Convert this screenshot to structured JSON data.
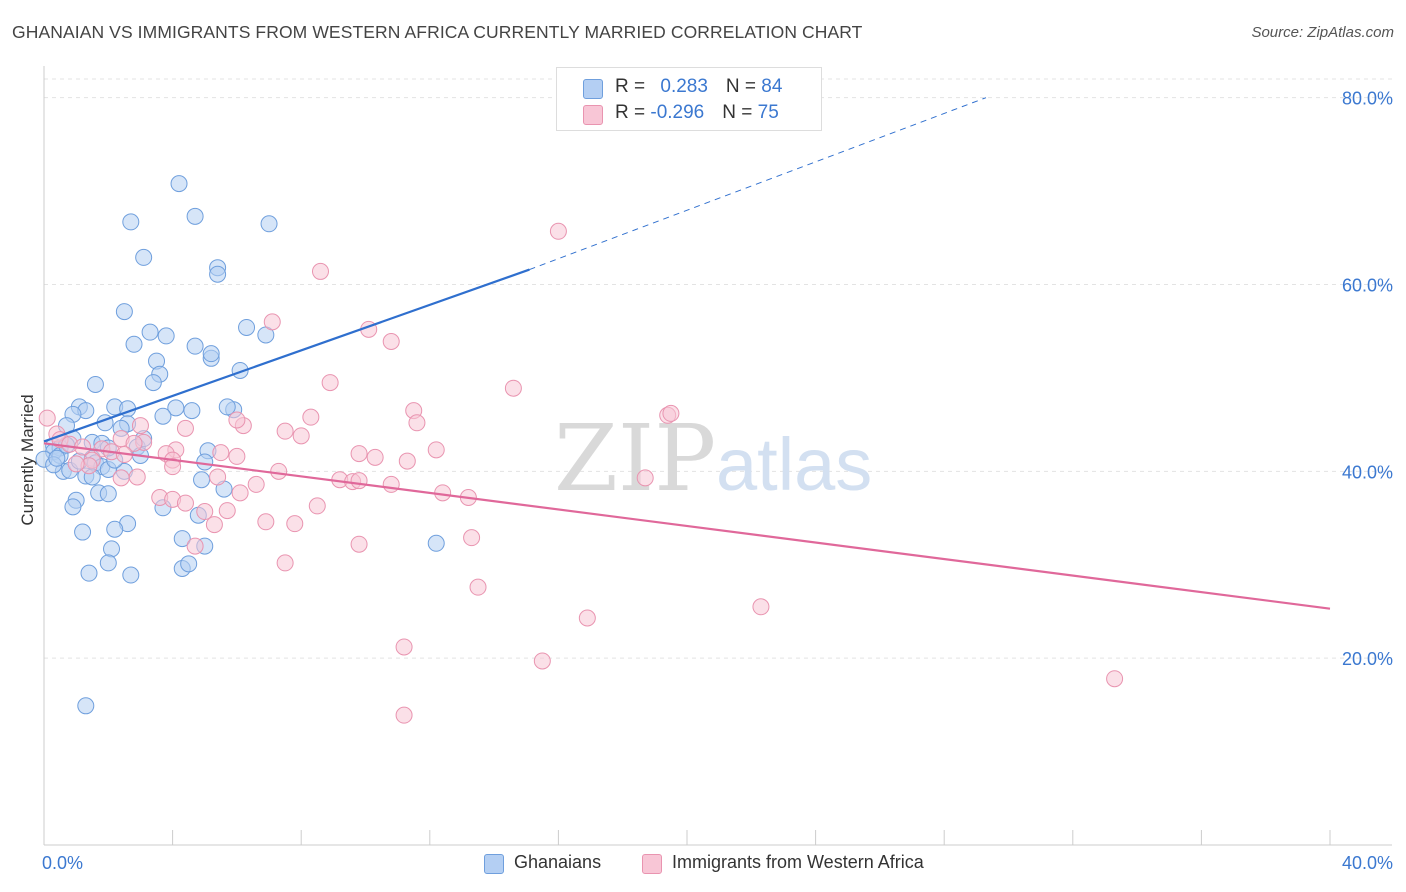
{
  "title": "GHANAIAN VS IMMIGRANTS FROM WESTERN AFRICA CURRENTLY MARRIED CORRELATION CHART",
  "source": "Source: ZipAtlas.com",
  "watermark": {
    "zip": "ZIP",
    "atlas": "atlas"
  },
  "legend": {
    "rows": [
      {
        "r_label": "R = ",
        "r_value": "0.283",
        "n_label": "N = ",
        "n_value": "84"
      },
      {
        "r_label": "R = ",
        "r_value": "-0.296",
        "n_label": "N = ",
        "n_value": "75"
      }
    ]
  },
  "bottom_legend": [
    {
      "label": "Ghanaians"
    },
    {
      "label": "Immigrants from Western Africa"
    }
  ],
  "chart_data": {
    "type": "scatter",
    "title": "GHANAIAN VS IMMIGRANTS FROM WESTERN AFRICA CURRENTLY MARRIED CORRELATION CHART",
    "xlabel": "",
    "ylabel": "Currently Married",
    "xlim": [
      0,
      40
    ],
    "ylim": [
      0,
      82
    ],
    "x_tick_labels": [
      "0.0%",
      "40.0%"
    ],
    "y_ticks": [
      20,
      40,
      60,
      80
    ],
    "y_tick_labels": [
      "20.0%",
      "40.0%",
      "60.0%",
      "80.0%"
    ],
    "grid": true,
    "legend_position": "top-center",
    "colors": {
      "ghanaians_fill": "#b4cff3",
      "ghanaians_stroke": "#6f9fdd",
      "ghanaians_line": "#2f6fce",
      "western_africa_fill": "#f8c6d6",
      "western_africa_stroke": "#e994b0",
      "western_africa_line": "#e0689a",
      "tick_label": "#3b78d0"
    },
    "series": [
      {
        "name": "Ghanaians",
        "r": 0.283,
        "n": 84,
        "trend": {
          "x0": 0.0,
          "y0": 43.2,
          "x1": 15.1,
          "y1": 61.6,
          "dashed_to_x": 29.3,
          "dashed_to_y": 80.0
        },
        "points": [
          [
            4.2,
            70.8
          ],
          [
            4.7,
            67.3
          ],
          [
            2.7,
            66.7
          ],
          [
            7.0,
            66.5
          ],
          [
            3.1,
            62.9
          ],
          [
            5.4,
            61.8
          ],
          [
            5.4,
            61.1
          ],
          [
            2.5,
            57.1
          ],
          [
            6.3,
            55.4
          ],
          [
            6.9,
            54.6
          ],
          [
            3.3,
            54.9
          ],
          [
            3.8,
            54.5
          ],
          [
            2.8,
            53.6
          ],
          [
            4.7,
            53.4
          ],
          [
            5.2,
            52.1
          ],
          [
            5.2,
            52.6
          ],
          [
            3.5,
            51.8
          ],
          [
            3.6,
            50.4
          ],
          [
            1.6,
            49.3
          ],
          [
            3.4,
            49.5
          ],
          [
            6.1,
            50.8
          ],
          [
            5.9,
            46.6
          ],
          [
            5.7,
            46.9
          ],
          [
            1.1,
            46.9
          ],
          [
            1.3,
            46.5
          ],
          [
            2.2,
            46.9
          ],
          [
            0.9,
            46.1
          ],
          [
            2.6,
            46.7
          ],
          [
            4.1,
            46.8
          ],
          [
            4.6,
            46.5
          ],
          [
            3.7,
            45.9
          ],
          [
            1.9,
            45.2
          ],
          [
            2.6,
            45.1
          ],
          [
            0.7,
            44.9
          ],
          [
            2.4,
            44.6
          ],
          [
            0.9,
            43.5
          ],
          [
            1.5,
            43.1
          ],
          [
            1.8,
            43.0
          ],
          [
            2.9,
            42.6
          ],
          [
            0.3,
            42.7
          ],
          [
            0.5,
            42.5
          ],
          [
            0.3,
            42.1
          ],
          [
            0.5,
            41.7
          ],
          [
            1.5,
            41.4
          ],
          [
            0.7,
            42.8
          ],
          [
            5.1,
            42.2
          ],
          [
            0.0,
            41.3
          ],
          [
            1.6,
            40.9
          ],
          [
            3.0,
            41.7
          ],
          [
            5.0,
            41.0
          ],
          [
            1.8,
            40.5
          ],
          [
            0.6,
            40.0
          ],
          [
            0.8,
            40.1
          ],
          [
            2.5,
            40.0
          ],
          [
            1.3,
            39.5
          ],
          [
            1.5,
            39.4
          ],
          [
            2.0,
            40.2
          ],
          [
            4.9,
            39.1
          ],
          [
            5.6,
            38.1
          ],
          [
            1.7,
            37.7
          ],
          [
            1.0,
            36.9
          ],
          [
            2.0,
            37.6
          ],
          [
            0.9,
            36.2
          ],
          [
            3.7,
            36.1
          ],
          [
            4.8,
            35.3
          ],
          [
            2.6,
            34.4
          ],
          [
            2.2,
            33.8
          ],
          [
            1.2,
            33.5
          ],
          [
            4.3,
            32.8
          ],
          [
            5.0,
            32.0
          ],
          [
            12.2,
            32.3
          ],
          [
            2.1,
            31.7
          ],
          [
            2.0,
            30.2
          ],
          [
            1.4,
            29.1
          ],
          [
            2.7,
            28.9
          ],
          [
            4.3,
            29.6
          ],
          [
            4.5,
            30.1
          ],
          [
            1.3,
            14.9
          ],
          [
            2.2,
            41.2
          ],
          [
            0.3,
            40.7
          ],
          [
            1.1,
            41.1
          ],
          [
            2.0,
            42.5
          ],
          [
            3.1,
            43.5
          ],
          [
            0.4,
            41.4
          ]
        ]
      },
      {
        "name": "Immigrants from Western Africa",
        "r": -0.296,
        "n": 75,
        "trend": {
          "x0": 0.0,
          "y0": 43.0,
          "x1": 40.0,
          "y1": 25.3
        },
        "points": [
          [
            16.0,
            65.7
          ],
          [
            8.6,
            61.4
          ],
          [
            7.1,
            56.0
          ],
          [
            10.1,
            55.2
          ],
          [
            10.8,
            53.9
          ],
          [
            8.9,
            49.5
          ],
          [
            14.6,
            48.9
          ],
          [
            11.5,
            46.5
          ],
          [
            19.4,
            46.0
          ],
          [
            8.3,
            45.8
          ],
          [
            3.0,
            44.9
          ],
          [
            4.4,
            44.6
          ],
          [
            6.2,
            44.9
          ],
          [
            7.5,
            44.3
          ],
          [
            8.0,
            43.8
          ],
          [
            11.6,
            45.2
          ],
          [
            2.4,
            43.5
          ],
          [
            3.1,
            43.1
          ],
          [
            4.1,
            42.3
          ],
          [
            6.0,
            41.6
          ],
          [
            0.4,
            44.0
          ],
          [
            0.5,
            43.4
          ],
          [
            0.8,
            42.9
          ],
          [
            1.2,
            42.6
          ],
          [
            1.8,
            42.4
          ],
          [
            2.1,
            42.1
          ],
          [
            3.8,
            41.9
          ],
          [
            5.5,
            42.0
          ],
          [
            9.8,
            41.9
          ],
          [
            10.3,
            41.5
          ],
          [
            11.3,
            41.1
          ],
          [
            12.2,
            42.3
          ],
          [
            4.0,
            41.2
          ],
          [
            1.5,
            41.2
          ],
          [
            1.4,
            40.6
          ],
          [
            7.3,
            40.0
          ],
          [
            2.4,
            39.3
          ],
          [
            2.9,
            39.4
          ],
          [
            5.4,
            39.4
          ],
          [
            9.2,
            39.1
          ],
          [
            9.6,
            38.9
          ],
          [
            9.8,
            39.0
          ],
          [
            10.8,
            38.6
          ],
          [
            18.7,
            39.3
          ],
          [
            6.6,
            38.6
          ],
          [
            6.1,
            37.7
          ],
          [
            12.4,
            37.7
          ],
          [
            13.2,
            37.2
          ],
          [
            3.6,
            37.2
          ],
          [
            4.0,
            37.0
          ],
          [
            4.4,
            36.6
          ],
          [
            8.5,
            36.3
          ],
          [
            5.0,
            35.7
          ],
          [
            5.7,
            35.8
          ],
          [
            6.9,
            34.6
          ],
          [
            7.8,
            34.4
          ],
          [
            5.3,
            34.3
          ],
          [
            13.3,
            32.9
          ],
          [
            9.8,
            32.2
          ],
          [
            4.7,
            32.0
          ],
          [
            7.5,
            30.2
          ],
          [
            13.5,
            27.6
          ],
          [
            16.9,
            24.3
          ],
          [
            22.3,
            25.5
          ],
          [
            11.2,
            21.2
          ],
          [
            15.5,
            19.7
          ],
          [
            33.3,
            17.8
          ],
          [
            11.2,
            13.9
          ],
          [
            19.5,
            46.2
          ],
          [
            6.0,
            45.5
          ],
          [
            0.1,
            45.7
          ],
          [
            2.8,
            43.0
          ],
          [
            4.0,
            40.5
          ],
          [
            2.5,
            41.8
          ],
          [
            1.0,
            40.8
          ]
        ]
      }
    ]
  }
}
